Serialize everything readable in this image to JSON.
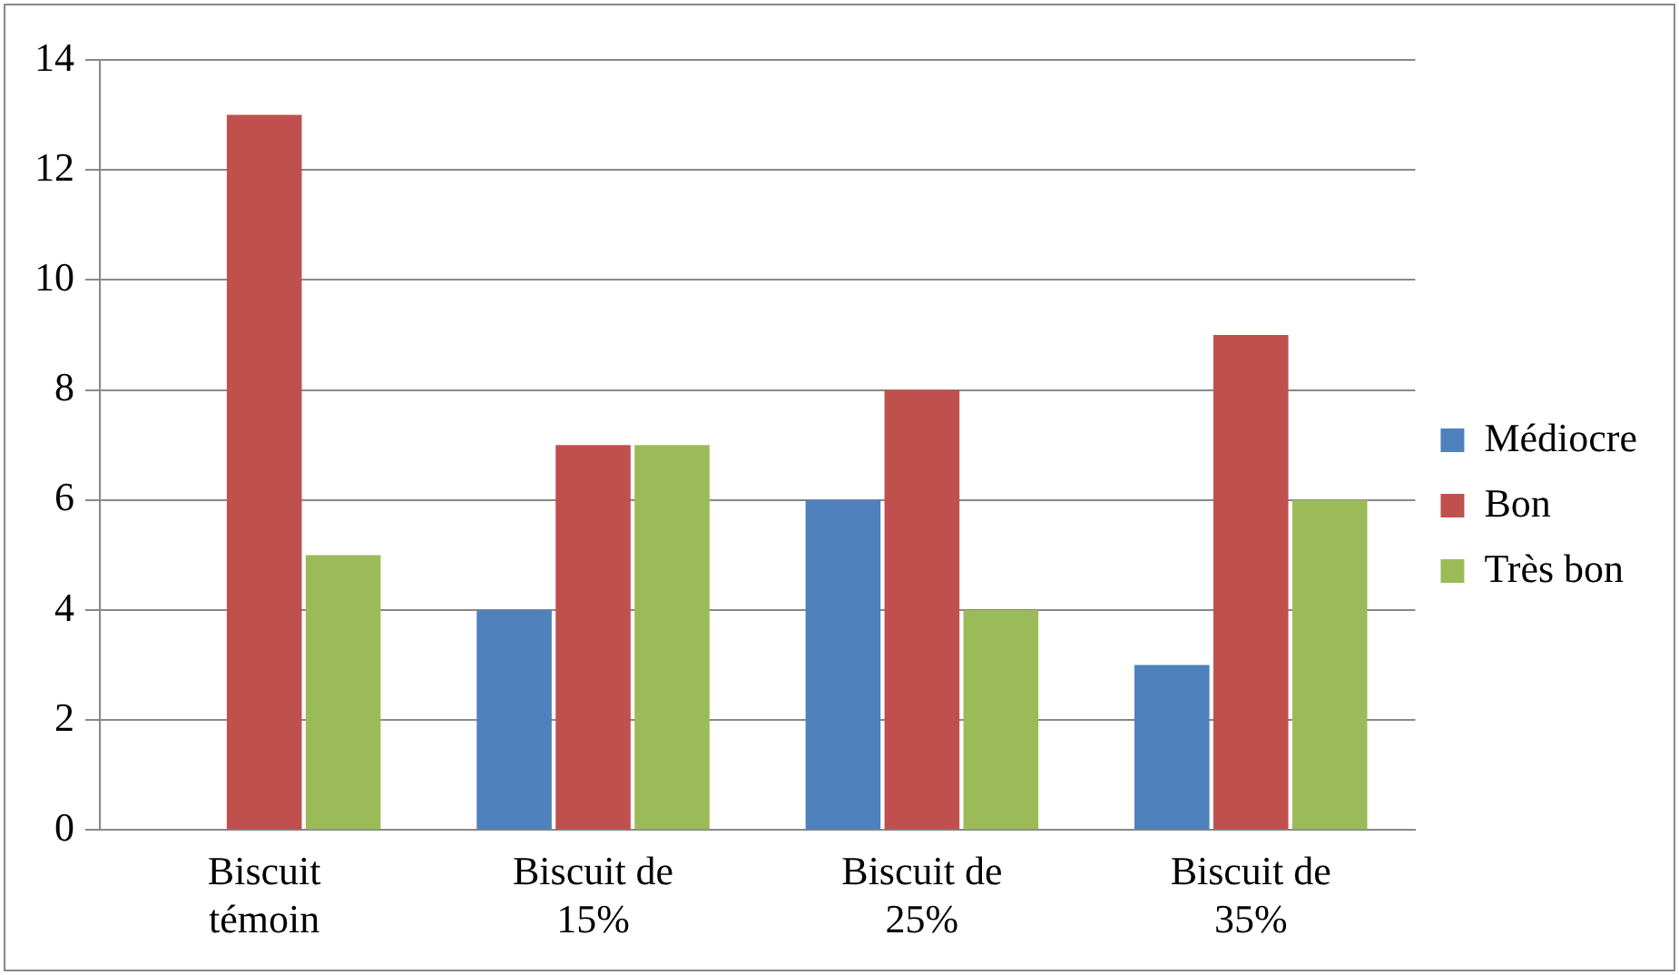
{
  "chart_data": {
    "type": "bar",
    "categories": [
      "Biscuit témoin",
      "Biscuit de 15%",
      "Biscuit de 25%",
      "Biscuit de 35%"
    ],
    "series": [
      {
        "name": "Médiocre",
        "color": "#4f81bd",
        "values": [
          0,
          4,
          6,
          3
        ]
      },
      {
        "name": "Bon",
        "color": "#c0504d",
        "values": [
          13,
          7,
          8,
          9
        ]
      },
      {
        "name": "Très bon",
        "color": "#9bbb59",
        "values": [
          5,
          7,
          4,
          6
        ]
      }
    ],
    "ylim": [
      0,
      14
    ],
    "yticks": [
      0,
      2,
      4,
      6,
      8,
      10,
      12,
      14
    ],
    "grid": "y",
    "legend": "right"
  }
}
